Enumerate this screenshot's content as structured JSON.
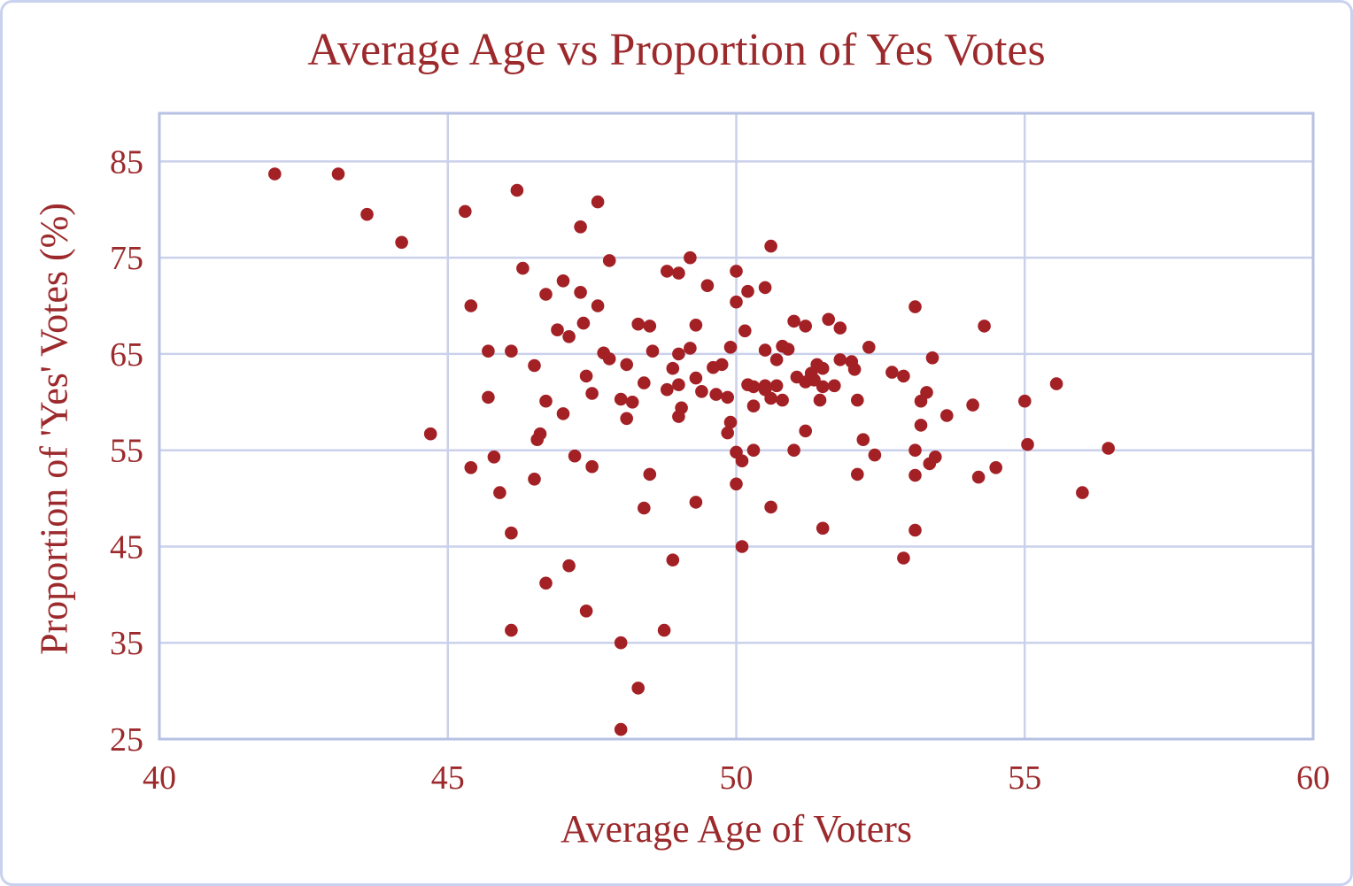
{
  "figure": {
    "background_color": "#ffffff",
    "outer_border_color": "#c8d1ee"
  },
  "chart_data": {
    "type": "scatter",
    "title": "Average Age vs Proportion of Yes Votes",
    "xlabel": "Average Age of Voters",
    "ylabel": "Proportion of 'Yes' Votes (%)",
    "xlim": [
      40,
      60
    ],
    "ylim": [
      25,
      90
    ],
    "xticks": [
      40,
      45,
      50,
      55,
      60
    ],
    "yticks": [
      25,
      35,
      45,
      55,
      65,
      75,
      85
    ],
    "grid": true,
    "legend": "none",
    "point_color": "#a32025",
    "text_color": "#9c2a2c",
    "grid_color": "#cbd1eb",
    "plot_border_color": "#b7c1e3",
    "points": [
      [
        42.0,
        83.7
      ],
      [
        43.1,
        83.7
      ],
      [
        43.6,
        79.5
      ],
      [
        44.2,
        76.6
      ],
      [
        45.3,
        79.8
      ],
      [
        46.2,
        82.0
      ],
      [
        47.6,
        80.8
      ],
      [
        47.3,
        78.2
      ],
      [
        47.8,
        74.7
      ],
      [
        46.3,
        73.9
      ],
      [
        45.4,
        70.0
      ],
      [
        47.0,
        72.6
      ],
      [
        46.7,
        71.2
      ],
      [
        47.3,
        71.4
      ],
      [
        47.6,
        70.0
      ],
      [
        48.8,
        73.6
      ],
      [
        49.0,
        73.4
      ],
      [
        49.2,
        75.0
      ],
      [
        49.5,
        72.1
      ],
      [
        50.0,
        73.6
      ],
      [
        50.0,
        70.4
      ],
      [
        50.6,
        76.2
      ],
      [
        50.2,
        71.5
      ],
      [
        50.5,
        71.9
      ],
      [
        53.1,
        69.9
      ],
      [
        51.0,
        68.4
      ],
      [
        51.2,
        67.9
      ],
      [
        51.6,
        68.6
      ],
      [
        51.8,
        67.7
      ],
      [
        54.3,
        67.9
      ],
      [
        46.9,
        67.5
      ],
      [
        47.1,
        66.8
      ],
      [
        47.35,
        68.2
      ],
      [
        48.3,
        68.1
      ],
      [
        48.5,
        67.9
      ],
      [
        49.3,
        68.0
      ],
      [
        50.15,
        67.4
      ],
      [
        44.7,
        56.7
      ],
      [
        45.7,
        65.3
      ],
      [
        46.1,
        65.3
      ],
      [
        46.5,
        63.8
      ],
      [
        47.7,
        65.1
      ],
      [
        47.8,
        64.5
      ],
      [
        48.1,
        63.9
      ],
      [
        48.55,
        65.3
      ],
      [
        49.0,
        65.0
      ],
      [
        48.9,
        63.5
      ],
      [
        49.2,
        65.6
      ],
      [
        49.9,
        65.7
      ],
      [
        49.6,
        63.6
      ],
      [
        49.75,
        63.9
      ],
      [
        47.4,
        62.7
      ],
      [
        47.5,
        60.9
      ],
      [
        48.4,
        62.0
      ],
      [
        48.8,
        61.3
      ],
      [
        49.0,
        61.8
      ],
      [
        49.3,
        62.5
      ],
      [
        49.4,
        61.1
      ],
      [
        49.65,
        60.8
      ],
      [
        49.85,
        60.5
      ],
      [
        45.7,
        60.5
      ],
      [
        46.7,
        60.1
      ],
      [
        47.0,
        58.8
      ],
      [
        48.0,
        60.3
      ],
      [
        48.2,
        60.0
      ],
      [
        48.1,
        58.3
      ],
      [
        49.05,
        59.4
      ],
      [
        49.0,
        58.5
      ],
      [
        46.6,
        56.7
      ],
      [
        46.55,
        56.1
      ],
      [
        49.9,
        57.9
      ],
      [
        49.85,
        56.8
      ],
      [
        47.2,
        54.4
      ],
      [
        47.5,
        53.3
      ],
      [
        45.8,
        54.3
      ],
      [
        45.4,
        53.2
      ],
      [
        46.5,
        52.0
      ],
      [
        48.5,
        52.5
      ],
      [
        45.9,
        50.6
      ],
      [
        48.4,
        49.0
      ],
      [
        49.3,
        49.6
      ],
      [
        46.1,
        46.4
      ],
      [
        50.0,
        54.8
      ],
      [
        50.1,
        53.9
      ],
      [
        50.3,
        55.0
      ],
      [
        50.0,
        51.5
      ],
      [
        50.5,
        65.4
      ],
      [
        50.7,
        64.4
      ],
      [
        50.8,
        65.8
      ],
      [
        50.9,
        65.5
      ],
      [
        52.3,
        65.7
      ],
      [
        53.4,
        64.6
      ],
      [
        51.4,
        63.9
      ],
      [
        51.5,
        63.5
      ],
      [
        51.3,
        63.0
      ],
      [
        51.8,
        64.4
      ],
      [
        52.0,
        64.2
      ],
      [
        52.05,
        63.4
      ],
      [
        51.05,
        62.6
      ],
      [
        51.2,
        62.1
      ],
      [
        51.35,
        62.3
      ],
      [
        52.7,
        63.1
      ],
      [
        52.9,
        62.7
      ],
      [
        50.2,
        61.8
      ],
      [
        50.3,
        61.6
      ],
      [
        50.5,
        61.7
      ],
      [
        50.5,
        61.3
      ],
      [
        50.7,
        61.7
      ],
      [
        50.6,
        60.4
      ],
      [
        50.8,
        60.2
      ],
      [
        50.3,
        59.6
      ],
      [
        51.5,
        61.6
      ],
      [
        51.7,
        61.7
      ],
      [
        51.45,
        60.2
      ],
      [
        52.1,
        60.2
      ],
      [
        53.3,
        61.0
      ],
      [
        53.2,
        60.1
      ],
      [
        54.1,
        59.7
      ],
      [
        55.0,
        60.1
      ],
      [
        53.65,
        58.6
      ],
      [
        53.2,
        57.6
      ],
      [
        51.2,
        57.0
      ],
      [
        52.2,
        56.1
      ],
      [
        55.05,
        55.6
      ],
      [
        51.0,
        55.0
      ],
      [
        52.4,
        54.5
      ],
      [
        53.1,
        55.0
      ],
      [
        53.45,
        54.3
      ],
      [
        53.35,
        53.6
      ],
      [
        52.1,
        52.5
      ],
      [
        53.1,
        52.4
      ],
      [
        54.2,
        52.2
      ],
      [
        54.5,
        53.2
      ],
      [
        50.6,
        49.1
      ],
      [
        51.5,
        46.9
      ],
      [
        53.1,
        46.7
      ],
      [
        50.1,
        45.0
      ],
      [
        55.55,
        61.9
      ],
      [
        56.45,
        55.2
      ],
      [
        56.0,
        50.6
      ],
      [
        47.1,
        43.0
      ],
      [
        46.7,
        41.2
      ],
      [
        48.9,
        43.6
      ],
      [
        47.4,
        38.3
      ],
      [
        46.1,
        36.3
      ],
      [
        48.75,
        36.3
      ],
      [
        48.0,
        35.0
      ],
      [
        48.3,
        30.3
      ],
      [
        48.0,
        26.0
      ],
      [
        52.9,
        43.8
      ]
    ]
  }
}
